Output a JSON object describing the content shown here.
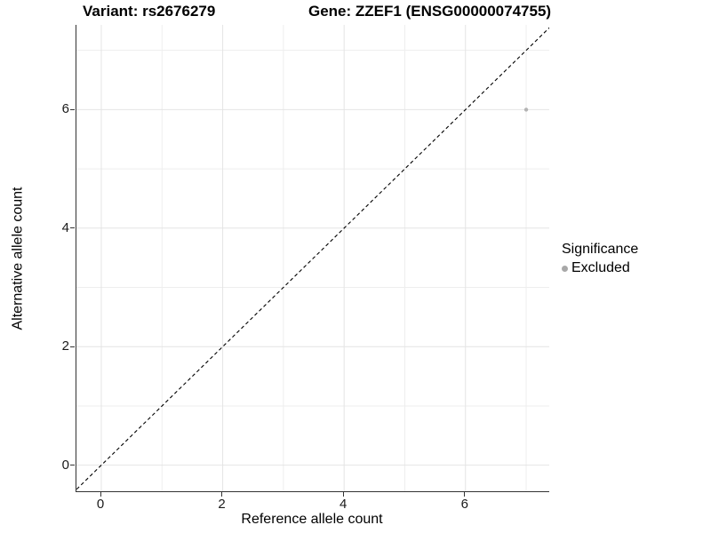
{
  "chart_data": {
    "type": "scatter",
    "title_left": "Variant: rs2676279",
    "title_right": "Gene: ZZEF1 (ENSG00000074755)",
    "xlabel": "Reference allele count",
    "ylabel": "Alternative allele count",
    "xlim": [
      -0.41,
      7.38
    ],
    "ylim": [
      -0.44,
      7.43
    ],
    "x_major_ticks": [
      0,
      2,
      4,
      6
    ],
    "x_minor_ticks": [
      1,
      3,
      5,
      7
    ],
    "y_major_ticks": [
      0,
      2,
      4,
      6
    ],
    "y_minor_ticks": [
      1,
      3,
      5,
      7
    ],
    "grid": true,
    "identity_line": {
      "equation": "y = x",
      "style": "dashed",
      "color": "#000000"
    },
    "series": [
      {
        "name": "Excluded",
        "color": "#b3b3b3",
        "points": [
          {
            "x": 7,
            "y": 6
          }
        ],
        "point_radius": 2.2
      }
    ],
    "legend": {
      "title": "Significance",
      "position": "right",
      "items": [
        {
          "label": "Excluded",
          "color": "#a8a8a8"
        }
      ]
    },
    "colors": {
      "grid_major": "#e4e4e4",
      "grid_minor": "#eeeeee",
      "axis_line": "#333333",
      "tick_mark": "#333333"
    }
  }
}
